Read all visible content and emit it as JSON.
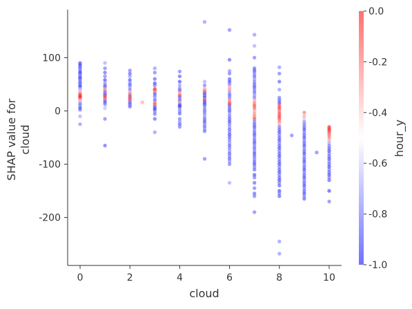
{
  "chart_data": {
    "type": "scatter",
    "title": "",
    "xlabel": "cloud",
    "ylabel_lines": [
      "SHAP value for",
      "cloud"
    ],
    "xlim": [
      -0.5,
      10.5
    ],
    "ylim": [
      -290,
      190
    ],
    "x_ticks": [
      0,
      2,
      4,
      6,
      8,
      10
    ],
    "x_tick_labels": [
      "0",
      "2",
      "4",
      "6",
      "8",
      "10"
    ],
    "y_ticks": [
      100,
      0,
      -100,
      -200
    ],
    "y_tick_labels": [
      "100",
      "0",
      "-100",
      "-200"
    ],
    "grid": false,
    "colorbar": {
      "label": "hour_y",
      "range": [
        -1.0,
        0.0
      ],
      "ticks": [
        0.0,
        -0.2,
        -0.4,
        -0.6,
        -0.8,
        -1.0
      ],
      "tick_labels": [
        "0.0",
        "-0.2",
        "-0.4",
        "-0.6",
        "-0.8",
        "-1.0"
      ],
      "colormap": [
        "#0000ff",
        "#ffffff",
        "#ff0000"
      ]
    },
    "point_columns": [
      {
        "x": 0,
        "y": [
          90,
          88,
          85,
          82,
          80,
          78,
          75,
          72,
          70,
          68,
          65,
          62,
          60,
          58,
          55,
          52,
          50,
          48,
          45,
          42,
          40,
          38,
          35,
          32,
          30,
          28,
          26,
          25,
          22,
          20,
          18,
          15,
          12,
          8,
          5,
          2,
          -10,
          -25
        ],
        "hour": [
          -0.85,
          -0.8,
          -0.9,
          -0.75,
          -0.85,
          -0.7,
          -0.8,
          -0.9,
          -0.85,
          -0.75,
          -0.8,
          -0.85,
          -0.9,
          -0.7,
          -0.8,
          -0.85,
          -0.75,
          -0.8,
          -0.9,
          -0.7,
          -0.65,
          -0.6,
          -0.3,
          -0.2,
          -0.15,
          -0.1,
          -0.05,
          -0.1,
          -0.2,
          -0.3,
          -0.6,
          -0.7,
          -0.8,
          -0.75,
          -0.85,
          -0.8,
          -0.7,
          -0.75
        ]
      },
      {
        "x": 1,
        "y": [
          90,
          80,
          72,
          65,
          58,
          52,
          48,
          45,
          42,
          38,
          35,
          32,
          30,
          28,
          25,
          22,
          20,
          18,
          15,
          12,
          5,
          -15,
          -65
        ],
        "hour": [
          -0.7,
          -0.8,
          -0.85,
          -0.8,
          -0.9,
          -0.75,
          -0.8,
          -0.85,
          -0.3,
          -0.2,
          -0.8,
          -0.75,
          -0.85,
          -0.15,
          -0.1,
          -0.2,
          -0.7,
          -0.8,
          -0.85,
          -0.75,
          -0.65,
          -0.8,
          -0.85
        ]
      },
      {
        "x": 2,
        "y": [
          76,
          70,
          65,
          58,
          52,
          48,
          45,
          40,
          35,
          32,
          28,
          25,
          22,
          20,
          18,
          15,
          12,
          10,
          8
        ],
        "hour": [
          -0.8,
          -0.85,
          -0.75,
          -0.9,
          -0.8,
          -0.85,
          -0.7,
          -0.8,
          -0.3,
          -0.2,
          -0.85,
          -0.15,
          -0.1,
          -0.2,
          -0.75,
          -0.8,
          -0.85,
          -0.7,
          -0.8
        ]
      },
      {
        "x": 2.5,
        "y": [
          16
        ],
        "hour": [
          -0.3
        ]
      },
      {
        "x": 3,
        "y": [
          80,
          72,
          60,
          52,
          48,
          42,
          40,
          38,
          35,
          32,
          28,
          25,
          20,
          15,
          12,
          10,
          8,
          5,
          2,
          -2,
          -6,
          -15,
          -40
        ],
        "hour": [
          -0.75,
          -0.8,
          -0.85,
          -0.9,
          -0.8,
          -0.2,
          -0.1,
          -0.15,
          -0.3,
          -0.85,
          -0.8,
          -0.7,
          -0.85,
          -0.2,
          -0.1,
          -0.3,
          -0.8,
          -0.85,
          -0.9,
          -0.75,
          -0.8,
          -0.85,
          -0.75
        ]
      },
      {
        "x": 4,
        "y": [
          74,
          65,
          55,
          48,
          42,
          38,
          35,
          30,
          28,
          25,
          20,
          18,
          15,
          12,
          10,
          8,
          5,
          0,
          -5,
          -15,
          -20,
          -25,
          -30
        ],
        "hour": [
          -0.8,
          -0.85,
          -0.9,
          -0.75,
          -0.8,
          -0.85,
          -0.3,
          -0.2,
          -0.15,
          -0.8,
          -0.85,
          -0.7,
          -0.3,
          -0.8,
          -0.85,
          -0.9,
          -0.75,
          -0.8,
          -0.85,
          -0.8,
          -0.75,
          -0.85,
          -0.8
        ]
      },
      {
        "x": 5,
        "y": [
          167,
          55,
          48,
          42,
          38,
          35,
          32,
          30,
          28,
          25,
          22,
          20,
          18,
          15,
          12,
          10,
          5,
          0,
          -5,
          -10,
          -15,
          -20,
          -25,
          -30,
          -35,
          -38,
          -90
        ],
        "hour": [
          -0.75,
          -0.7,
          -0.8,
          -0.3,
          -0.2,
          -0.15,
          -0.85,
          -0.8,
          -0.75,
          -0.9,
          -0.3,
          -0.1,
          -0.8,
          -0.85,
          -0.9,
          -0.75,
          -0.8,
          -0.85,
          -0.8,
          -0.75,
          -0.85,
          -0.9,
          -0.8,
          -0.85,
          -0.75,
          -0.8,
          -0.8
        ]
      },
      {
        "x": 6,
        "y": [
          152,
          96,
          75,
          70,
          60,
          55,
          50,
          45,
          40,
          35,
          30,
          25,
          20,
          15,
          12,
          10,
          5,
          0,
          -5,
          -10,
          -15,
          -20,
          -25,
          -30,
          -35,
          -40,
          -45,
          -50,
          -55,
          -60,
          -65,
          -70,
          -75,
          -80,
          -85,
          -90,
          -95,
          -100,
          -135
        ],
        "hour": [
          -0.8,
          -0.85,
          -0.75,
          -0.8,
          -0.85,
          -0.9,
          -0.8,
          -0.3,
          -0.25,
          -0.75,
          -0.85,
          -0.8,
          -0.2,
          -0.1,
          -0.15,
          -0.8,
          -0.85,
          -0.9,
          -0.75,
          -0.8,
          -0.85,
          -0.9,
          -0.8,
          -0.75,
          -0.85,
          -0.8,
          -0.9,
          -0.85,
          -0.8,
          -0.75,
          -0.85,
          -0.8,
          -0.75,
          -0.85,
          -0.8,
          -0.85,
          -0.75,
          -0.8,
          -0.7
        ]
      },
      {
        "x": 7,
        "y": [
          143,
          122,
          100,
          80,
          75,
          70,
          65,
          60,
          55,
          50,
          45,
          40,
          35,
          30,
          25,
          20,
          15,
          10,
          5,
          0,
          -5,
          -10,
          -15,
          -20,
          -25,
          -30,
          -35,
          -40,
          -45,
          -50,
          -55,
          -60,
          -65,
          -70,
          -75,
          -80,
          -85,
          -90,
          -95,
          -100,
          -105,
          -110,
          -120,
          -125,
          -135,
          -145,
          -155,
          -160,
          -190
        ],
        "hour": [
          -0.75,
          -0.7,
          -0.8,
          -0.85,
          -0.9,
          -0.8,
          -0.85,
          -0.75,
          -0.8,
          -0.85,
          -0.9,
          -0.8,
          -0.85,
          -0.75,
          -0.8,
          -0.3,
          -0.2,
          -0.1,
          -0.15,
          -0.3,
          -0.25,
          -0.2,
          -0.1,
          -0.8,
          -0.85,
          -0.9,
          -0.8,
          -0.85,
          -0.9,
          -0.8,
          -0.85,
          -0.9,
          -0.8,
          -0.85,
          -0.8,
          -0.9,
          -0.85,
          -0.8,
          -0.85,
          -0.9,
          -0.8,
          -0.85,
          -0.9,
          -0.8,
          -0.85,
          -0.8,
          -0.85,
          -0.8,
          -0.8
        ]
      },
      {
        "x": 8,
        "y": [
          82,
          70,
          55,
          40,
          25,
          20,
          15,
          10,
          5,
          0,
          -5,
          -10,
          -15,
          -20,
          -25,
          -30,
          -35,
          -40,
          -45,
          -50,
          -55,
          -60,
          -65,
          -70,
          -75,
          -80,
          -85,
          -90,
          -95,
          -100,
          -105,
          -110,
          -115,
          -120,
          -125,
          -130,
          -135,
          -140,
          -150,
          -155,
          -160,
          -245,
          -268
        ],
        "hour": [
          -0.75,
          -0.8,
          -0.85,
          -0.75,
          -0.8,
          -0.85,
          -0.9,
          -0.1,
          -0.05,
          -0.15,
          -0.1,
          -0.05,
          -0.1,
          -0.2,
          -0.3,
          -0.8,
          -0.85,
          -0.9,
          -0.8,
          -0.85,
          -0.9,
          -0.8,
          -0.85,
          -0.9,
          -0.8,
          -0.85,
          -0.9,
          -0.8,
          -0.85,
          -0.9,
          -0.8,
          -0.85,
          -0.9,
          -0.8,
          -0.85,
          -0.9,
          -0.8,
          -0.85,
          -0.9,
          -0.8,
          -0.85,
          -0.75,
          -0.75
        ]
      },
      {
        "x": 8.5,
        "y": [
          -46
        ],
        "hour": [
          -0.8
        ]
      },
      {
        "x": 9,
        "y": [
          -3,
          -10,
          -15,
          -20,
          -25,
          -30,
          -35,
          -40,
          -45,
          -50,
          -55,
          -60,
          -65,
          -70,
          -75,
          -80,
          -85,
          -90,
          -95,
          -100,
          -105,
          -110,
          -115,
          -120,
          -125,
          -130,
          -135,
          -140,
          -145,
          -150,
          -155,
          -160,
          -165
        ],
        "hour": [
          -0.2,
          -0.3,
          -0.6,
          -0.75,
          -0.8,
          -0.85,
          -0.9,
          -0.8,
          -0.85,
          -0.9,
          -0.8,
          -0.85,
          -0.9,
          -0.8,
          -0.85,
          -0.9,
          -0.8,
          -0.85,
          -0.9,
          -0.8,
          -0.85,
          -0.9,
          -0.8,
          -0.85,
          -0.9,
          -0.8,
          -0.85,
          -0.9,
          -0.8,
          -0.85,
          -0.9,
          -0.8,
          -0.85
        ]
      },
      {
        "x": 9.5,
        "y": [
          -78
        ],
        "hour": [
          -0.8
        ]
      },
      {
        "x": 10,
        "y": [
          -30,
          -33,
          -36,
          -40,
          -45,
          -50,
          -55,
          -60,
          -65,
          -70,
          -75,
          -80,
          -85,
          -90,
          -95,
          -100,
          -105,
          -110,
          -115,
          -120,
          -125,
          -130,
          -150,
          -170
        ],
        "hour": [
          -0.05,
          -0.1,
          -0.05,
          -0.1,
          -0.15,
          -0.2,
          -0.3,
          -0.7,
          -0.8,
          -0.85,
          -0.9,
          -0.8,
          -0.85,
          -0.9,
          -0.8,
          -0.85,
          -0.9,
          -0.8,
          -0.85,
          -0.9,
          -0.8,
          -0.85,
          -0.9,
          -0.8
        ]
      }
    ]
  }
}
